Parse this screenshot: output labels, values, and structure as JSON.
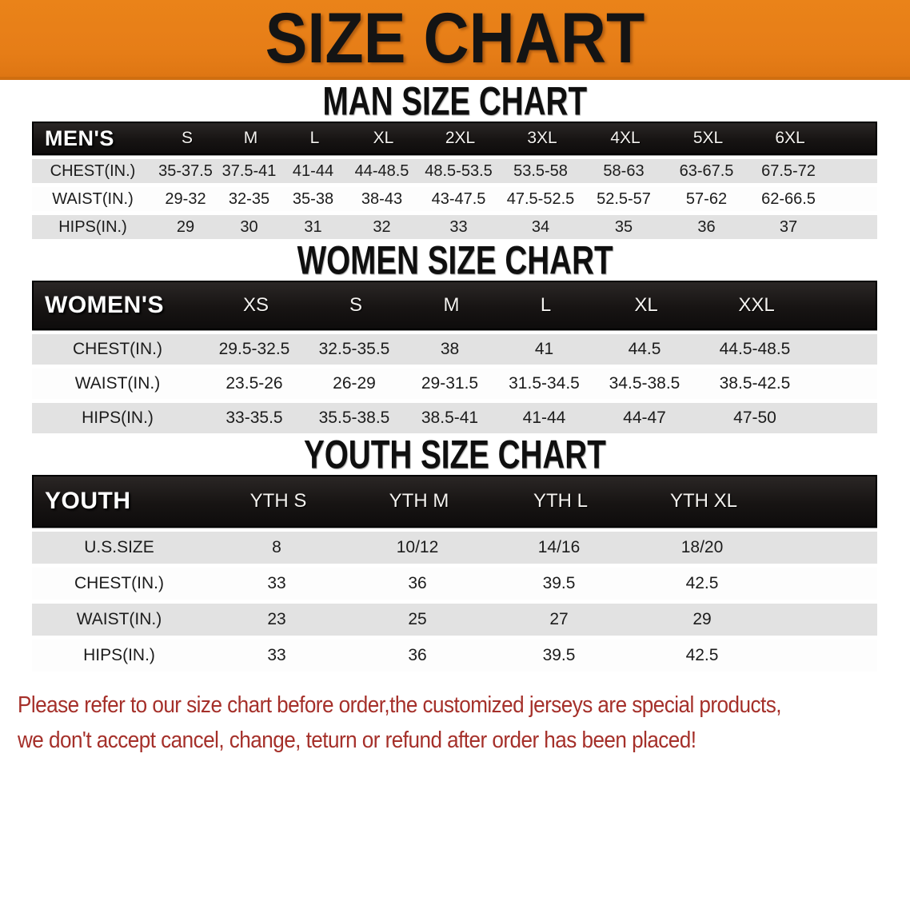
{
  "banner": {
    "title": "SIZE CHART",
    "bg_color": "#e67d17",
    "text_color": "#141414"
  },
  "sections": [
    {
      "heading": "MAN SIZE CHART",
      "label": "MEN'S",
      "columns": [
        "S",
        "M",
        "L",
        "XL",
        "2XL",
        "3XL",
        "4XL",
        "5XL",
        "6XL"
      ],
      "rows": [
        {
          "label": "CHEST(IN.)",
          "values": [
            "35-37.5",
            "37.5-41",
            "41-44",
            "44-48.5",
            "48.5-53.5",
            "53.5-58",
            "58-63",
            "63-67.5",
            "67.5-72"
          ]
        },
        {
          "label": "WAIST(IN.)",
          "values": [
            "29-32",
            "32-35",
            "35-38",
            "38-43",
            "43-47.5",
            "47.5-52.5",
            "52.5-57",
            "57-62",
            "62-66.5"
          ]
        },
        {
          "label": "HIPS(IN.)",
          "values": [
            "29",
            "30",
            "31",
            "32",
            "33",
            "34",
            "35",
            "36",
            "37"
          ]
        }
      ]
    },
    {
      "heading": "WOMEN SIZE CHART",
      "label": "WOMEN'S",
      "columns": [
        "XS",
        "S",
        "M",
        "L",
        "XL",
        "XXL"
      ],
      "rows": [
        {
          "label": "CHEST(IN.)",
          "values": [
            "29.5-32.5",
            "32.5-35.5",
            "38",
            "41",
            "44.5",
            "44.5-48.5"
          ]
        },
        {
          "label": "WAIST(IN.)",
          "values": [
            "23.5-26",
            "26-29",
            "29-31.5",
            "31.5-34.5",
            "34.5-38.5",
            "38.5-42.5"
          ]
        },
        {
          "label": "HIPS(IN.)",
          "values": [
            "33-35.5",
            "35.5-38.5",
            "38.5-41",
            "41-44",
            "44-47",
            "47-50"
          ]
        }
      ]
    },
    {
      "heading": "YOUTH SIZE CHART",
      "label": "YOUTH",
      "columns": [
        "YTH S",
        "YTH M",
        "YTH L",
        "YTH XL"
      ],
      "rows": [
        {
          "label": "U.S.SIZE",
          "values": [
            "8",
            "10/12",
            "14/16",
            "18/20"
          ]
        },
        {
          "label": "CHEST(IN.)",
          "values": [
            "33",
            "36",
            "39.5",
            "42.5"
          ]
        },
        {
          "label": "WAIST(IN.)",
          "values": [
            "23",
            "25",
            "27",
            "29"
          ]
        },
        {
          "label": "HIPS(IN.)",
          "values": [
            "33",
            "36",
            "39.5",
            "42.5"
          ]
        }
      ]
    }
  ],
  "disclaimer": {
    "line1": "Please refer to our size chart before order,the customized jerseys are special products,",
    "line2": "we don't accept cancel, change, teturn or refund after order has been placed!",
    "color": "#a5302a"
  }
}
